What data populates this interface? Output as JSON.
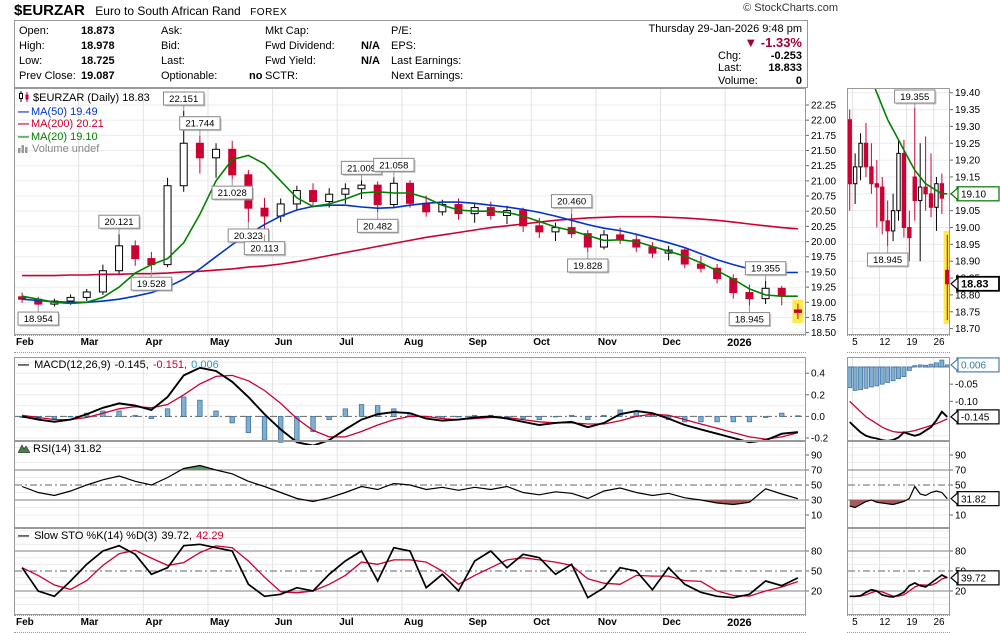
{
  "header": {
    "symbol": "$EURZAR",
    "description": "Euro to South African Rand",
    "exchange": "FOREX",
    "copyright": "© StockCharts.com"
  },
  "quote": {
    "col1": [
      {
        "label": "Open:",
        "value": "18.873"
      },
      {
        "label": "High:",
        "value": "18.978"
      },
      {
        "label": "Low:",
        "value": "18.725"
      },
      {
        "label": "Prev Close:",
        "value": "19.087"
      }
    ],
    "col2": [
      {
        "label": "Ask:",
        "value": ""
      },
      {
        "label": "Bid:",
        "value": ""
      },
      {
        "label": "Last:",
        "value": ""
      },
      {
        "label": "Optionable:",
        "value": "no"
      }
    ],
    "col3": [
      {
        "label": "Mkt Cap:",
        "value": ""
      },
      {
        "label": "Fwd Dividend:",
        "value": "N/A"
      },
      {
        "label": "Fwd Yield:",
        "value": "N/A"
      },
      {
        "label": "SCTR:",
        "value": ""
      }
    ],
    "col4": [
      {
        "label": "P/E:",
        "value": ""
      },
      {
        "label": "EPS:",
        "value": ""
      },
      {
        "label": "Last Earnings:",
        "value": ""
      },
      {
        "label": "Next Earnings:",
        "value": ""
      }
    ],
    "date": "Thursday 29-Jan-2026 9:48 pm",
    "pct_change": "-1.33%",
    "chg": {
      "label": "Chg:",
      "value": "-0.253"
    },
    "last": {
      "label": "Last:",
      "value": "18.833"
    },
    "volume": {
      "label": "Volume:",
      "value": "0"
    }
  },
  "legends": {
    "price": {
      "title": "$EURZAR (Daily) 18.83",
      "ma50": "MA(50) 19.49",
      "ma200": "MA(200) 20.21",
      "ma20": "MA(20) 19.10",
      "volume": "Volume undef"
    },
    "macd": {
      "title": "MACD(12,26,9)",
      "macd": "-0.145,",
      "signal": "-0.151,",
      "hist": "0.006"
    },
    "rsi": "RSI(14) 31.82",
    "sto": {
      "title": "Slow STO %K(14) %D(3)",
      "k": "39.72,",
      "d": "42.29"
    }
  },
  "colors": {
    "down": "#cc0033",
    "up_outline": "#000000",
    "ma20": "#008000",
    "ma50": "#0033cc",
    "ma200": "#cc0033",
    "hist_fill": "#7fb0d4",
    "hist_stroke": "#44749c",
    "highlight": "#ffe94d",
    "neg_pct": "#a00034",
    "grid": "#ececec",
    "panel_border": "#999999",
    "rsi_over_fill": "#5d9b62",
    "rsi_under_fill": "#a35c5e"
  },
  "chart_data": {
    "type": "candlestick",
    "main": {
      "sampling": "weekly",
      "y_axis": {
        "max": 22.25,
        "min": 18.5,
        "step": 0.25
      },
      "months": [
        "Feb",
        "Mar",
        "Apr",
        "May",
        "Jun",
        "Jul",
        "Aug",
        "Sep",
        "Oct",
        "Nov",
        "Dec",
        "2026"
      ],
      "month_ticks": [
        0,
        4,
        8,
        12,
        16,
        20,
        24,
        28,
        32,
        36,
        40,
        44
      ],
      "candles": [
        [
          19.09,
          19.16,
          18.99,
          19.05
        ],
        [
          19.05,
          19.09,
          18.954,
          18.97
        ],
        [
          18.97,
          19.06,
          18.93,
          19.02
        ],
        [
          19.02,
          19.13,
          18.96,
          19.08
        ],
        [
          19.08,
          19.22,
          19.02,
          19.17
        ],
        [
          19.17,
          19.62,
          19.12,
          19.52
        ],
        [
          19.52,
          20.121,
          19.46,
          19.93
        ],
        [
          19.93,
          20.02,
          19.6,
          19.72
        ],
        [
          19.72,
          19.83,
          19.528,
          19.62
        ],
        [
          19.62,
          21.05,
          19.58,
          20.92
        ],
        [
          20.92,
          22.151,
          20.82,
          21.62
        ],
        [
          21.62,
          21.744,
          21.12,
          21.38
        ],
        [
          21.38,
          21.62,
          21.05,
          21.52
        ],
        [
          21.52,
          21.66,
          21.028,
          21.1
        ],
        [
          21.1,
          21.18,
          20.323,
          20.55
        ],
        [
          20.55,
          20.72,
          20.113,
          20.42
        ],
        [
          20.42,
          20.71,
          20.32,
          20.62
        ],
        [
          20.62,
          20.92,
          20.52,
          20.84
        ],
        [
          20.84,
          20.96,
          20.56,
          20.66
        ],
        [
          20.66,
          20.88,
          20.56,
          20.78
        ],
        [
          20.78,
          20.96,
          20.62,
          20.87
        ],
        [
          20.87,
          21.009,
          20.7,
          20.93
        ],
        [
          20.93,
          20.99,
          20.482,
          20.61
        ],
        [
          20.61,
          21.058,
          20.55,
          20.96
        ],
        [
          20.96,
          21.01,
          20.56,
          20.63
        ],
        [
          20.63,
          20.76,
          20.41,
          20.49
        ],
        [
          20.49,
          20.69,
          20.43,
          20.61
        ],
        [
          20.61,
          20.71,
          20.36,
          20.46
        ],
        [
          20.46,
          20.63,
          20.31,
          20.56
        ],
        [
          20.56,
          20.66,
          20.36,
          20.43
        ],
        [
          20.43,
          20.59,
          20.29,
          20.51
        ],
        [
          20.51,
          20.56,
          20.16,
          20.26
        ],
        [
          20.26,
          20.39,
          20.06,
          20.16
        ],
        [
          20.16,
          20.31,
          20.01,
          20.23
        ],
        [
          20.23,
          20.46,
          20.06,
          20.13
        ],
        [
          20.13,
          20.19,
          19.828,
          19.91
        ],
        [
          19.91,
          20.19,
          19.87,
          20.11
        ],
        [
          20.11,
          20.23,
          19.96,
          20.03
        ],
        [
          20.03,
          20.11,
          19.83,
          19.91
        ],
        [
          19.91,
          19.99,
          19.73,
          19.81
        ],
        [
          19.81,
          19.93,
          19.69,
          19.86
        ],
        [
          19.86,
          19.89,
          19.56,
          19.63
        ],
        [
          19.63,
          19.76,
          19.49,
          19.56
        ],
        [
          19.56,
          19.63,
          19.31,
          19.39
        ],
        [
          19.39,
          19.46,
          19.06,
          19.16
        ],
        [
          19.16,
          19.29,
          18.945,
          19.06
        ],
        [
          19.06,
          19.355,
          18.97,
          19.23
        ],
        [
          19.23,
          19.27,
          18.95,
          19.1
        ],
        [
          18.873,
          18.978,
          18.725,
          18.833
        ]
      ],
      "ma20": [
        19.1,
        19.05,
        19.0,
        18.98,
        19.0,
        19.08,
        19.25,
        19.48,
        19.62,
        19.72,
        19.98,
        20.45,
        21.0,
        21.35,
        21.42,
        21.28,
        21.0,
        20.72,
        20.58,
        20.62,
        20.7,
        20.8,
        20.82,
        20.8,
        20.8,
        20.72,
        20.6,
        20.52,
        20.5,
        20.5,
        20.48,
        20.42,
        20.33,
        20.24,
        20.18,
        20.1,
        20.02,
        20.03,
        20.0,
        19.92,
        19.84,
        19.76,
        19.65,
        19.52,
        19.38,
        19.22,
        19.12,
        19.1,
        19.1
      ],
      "ma50": [
        19.05,
        19.03,
        19.01,
        19.0,
        19.0,
        19.02,
        19.05,
        19.1,
        19.16,
        19.25,
        19.38,
        19.55,
        19.75,
        19.95,
        20.12,
        20.28,
        20.42,
        20.52,
        20.58,
        20.6,
        20.6,
        20.57,
        20.55,
        20.56,
        20.6,
        20.63,
        20.65,
        20.65,
        20.63,
        20.6,
        20.57,
        20.53,
        20.48,
        20.42,
        20.35,
        20.28,
        20.22,
        20.18,
        20.12,
        20.05,
        19.98,
        19.9,
        19.8,
        19.7,
        19.62,
        19.55,
        19.5,
        19.49,
        19.49
      ],
      "ma200": [
        19.44,
        19.44,
        19.44,
        19.45,
        19.45,
        19.46,
        19.46,
        19.47,
        19.47,
        19.48,
        19.5,
        19.51,
        19.53,
        19.55,
        19.58,
        19.6,
        19.63,
        19.67,
        19.72,
        19.77,
        19.82,
        19.87,
        19.92,
        19.97,
        20.02,
        20.07,
        20.11,
        20.15,
        20.19,
        20.23,
        20.26,
        20.29,
        20.32,
        20.35,
        20.37,
        20.39,
        20.4,
        20.41,
        20.41,
        20.41,
        20.4,
        20.39,
        20.37,
        20.35,
        20.32,
        20.29,
        20.26,
        20.23,
        20.21
      ],
      "annotations": [
        [
          1,
          "18.954",
          "b"
        ],
        [
          6,
          "20.121",
          "a"
        ],
        [
          8,
          "19.528",
          "b"
        ],
        [
          10,
          "22.151",
          "a"
        ],
        [
          11,
          "21.744",
          "a"
        ],
        [
          13,
          "21.028",
          "b"
        ],
        [
          14,
          "20.323",
          "b"
        ],
        [
          15,
          "20.113",
          "b"
        ],
        [
          21,
          "21.009",
          "a"
        ],
        [
          22,
          "20.482",
          "b"
        ],
        [
          23,
          "21.058",
          "a"
        ],
        [
          34,
          "20.460",
          "a"
        ],
        [
          35,
          "19.828",
          "b"
        ],
        [
          45,
          "18.945",
          "b"
        ],
        [
          46,
          "19.355",
          "a"
        ]
      ],
      "highlight_index": 48
    },
    "mini": {
      "y_axis": {
        "max": 19.4,
        "min": 18.7,
        "step": 0.05
      },
      "x_labels": [
        "5",
        "12",
        "19",
        "26"
      ],
      "x_ticks": [
        1,
        6,
        11,
        16
      ],
      "candles": [
        [
          19.32,
          19.35,
          19.05,
          19.13
        ],
        [
          19.13,
          19.22,
          19.07,
          19.18
        ],
        [
          19.18,
          19.28,
          19.14,
          19.25
        ],
        [
          19.25,
          19.31,
          19.15,
          19.18
        ],
        [
          19.18,
          19.25,
          19.1,
          19.13
        ],
        [
          19.13,
          19.2,
          19.0,
          19.12
        ],
        [
          19.12,
          19.15,
          18.98,
          19.02
        ],
        [
          19.02,
          19.08,
          18.945,
          18.99
        ],
        [
          18.99,
          19.1,
          18.96,
          19.05
        ],
        [
          19.05,
          19.26,
          19.02,
          19.22
        ],
        [
          19.22,
          19.26,
          18.97,
          19.0
        ],
        [
          19.0,
          19.05,
          18.9,
          18.97
        ],
        [
          19.15,
          19.355,
          19.02,
          19.08
        ],
        [
          19.08,
          19.25,
          18.9,
          19.12
        ],
        [
          19.12,
          19.27,
          19.05,
          19.1
        ],
        [
          19.1,
          19.22,
          19.03,
          19.06
        ],
        [
          19.06,
          19.15,
          18.99,
          19.13
        ],
        [
          19.13,
          19.16,
          19.04,
          19.087
        ],
        [
          18.873,
          18.978,
          18.725,
          18.833
        ]
      ],
      "ma20": [
        null,
        null,
        null,
        null,
        19.44,
        19.4,
        19.36,
        19.32,
        19.29,
        19.26,
        19.23,
        19.2,
        19.17,
        19.15,
        19.13,
        19.12,
        19.11,
        19.1,
        19.1
      ],
      "annotations": [
        [
          7,
          "18.945",
          "b"
        ],
        [
          12,
          "19.355",
          "a"
        ]
      ],
      "highlight_index": 18,
      "boxes": [
        {
          "v": 19.1,
          "t": "19.10",
          "s": "green"
        },
        {
          "v": 18.833,
          "t": "18.83",
          "s": "blackbold"
        }
      ]
    },
    "macd": {
      "labels": [
        0.4,
        0.2,
        0.0,
        -0.2
      ],
      "macd": [
        0.0,
        -0.03,
        -0.05,
        -0.03,
        0.02,
        0.08,
        0.12,
        0.1,
        0.06,
        0.18,
        0.38,
        0.45,
        0.42,
        0.32,
        0.18,
        0.02,
        -0.12,
        -0.24,
        -0.27,
        -0.22,
        -0.12,
        -0.03,
        0.02,
        0.04,
        0.03,
        -0.02,
        -0.04,
        -0.03,
        -0.01,
        0.0,
        -0.02,
        -0.05,
        -0.08,
        -0.06,
        -0.05,
        -0.1,
        -0.06,
        0.02,
        0.05,
        0.03,
        -0.02,
        -0.08,
        -0.12,
        -0.16,
        -0.2,
        -0.24,
        -0.22,
        -0.16,
        -0.145
      ],
      "signal": [
        0.01,
        -0.01,
        -0.03,
        -0.03,
        -0.01,
        0.03,
        0.07,
        0.09,
        0.08,
        0.11,
        0.2,
        0.3,
        0.37,
        0.38,
        0.33,
        0.24,
        0.12,
        -0.02,
        -0.13,
        -0.19,
        -0.19,
        -0.14,
        -0.08,
        -0.03,
        0.0,
        0.0,
        -0.02,
        -0.03,
        -0.02,
        -0.01,
        -0.01,
        -0.03,
        -0.05,
        -0.06,
        -0.06,
        -0.07,
        -0.07,
        -0.04,
        0.0,
        0.02,
        0.01,
        -0.03,
        -0.07,
        -0.11,
        -0.15,
        -0.19,
        -0.21,
        -0.19,
        -0.151
      ]
    },
    "macd_mini": {
      "labels": [
        -0.05,
        -0.1
      ],
      "macd": [
        -0.16,
        -0.175,
        -0.19,
        -0.2,
        -0.205,
        -0.208,
        -0.213,
        -0.215,
        -0.212,
        -0.205,
        -0.19,
        -0.195,
        -0.2,
        -0.195,
        -0.185,
        -0.175,
        -0.155,
        -0.13,
        -0.145
      ],
      "signal": [
        -0.1,
        -0.115,
        -0.13,
        -0.145,
        -0.155,
        -0.165,
        -0.175,
        -0.182,
        -0.188,
        -0.19,
        -0.19,
        -0.188,
        -0.185,
        -0.18,
        -0.175,
        -0.17,
        -0.165,
        -0.158,
        -0.151
      ],
      "hist": [
        -0.06,
        -0.068,
        -0.066,
        -0.062,
        -0.058,
        -0.055,
        -0.05,
        -0.045,
        -0.04,
        -0.034,
        -0.028,
        -0.01,
        0.004,
        0.006,
        0.005,
        0.008,
        0.012,
        0.02,
        0.006
      ],
      "boxes": [
        {
          "v": 0.006,
          "t": "0.006",
          "s": "blue"
        },
        {
          "v": -0.145,
          "t": "-0.145",
          "s": "black"
        }
      ]
    },
    "rsi": {
      "labels": [
        90,
        70,
        50,
        30,
        10
      ],
      "overbought": 70,
      "oversold": 30,
      "values": [
        48,
        40,
        36,
        42,
        50,
        57,
        62,
        55,
        50,
        60,
        72,
        76,
        70,
        65,
        55,
        48,
        40,
        32,
        28,
        33,
        40,
        48,
        44,
        52,
        50,
        44,
        47,
        43,
        47,
        44,
        48,
        40,
        37,
        41,
        39,
        32,
        42,
        46,
        40,
        36,
        39,
        33,
        30,
        26,
        24,
        27,
        45,
        38,
        31.82
      ]
    },
    "rsi_mini": {
      "labels": [
        90,
        70,
        50,
        10
      ],
      "values": [
        22,
        20,
        24,
        28,
        30,
        27,
        26,
        25,
        24,
        26,
        28,
        32,
        48,
        38,
        36,
        40,
        42,
        40,
        31.82
      ],
      "boxes": [
        {
          "v": 31.82,
          "t": "31.82",
          "s": "black"
        }
      ]
    },
    "sto": {
      "labels": [
        80,
        50,
        20
      ],
      "k": [
        55,
        20,
        12,
        35,
        60,
        80,
        88,
        75,
        45,
        55,
        88,
        90,
        85,
        80,
        30,
        12,
        15,
        25,
        20,
        45,
        65,
        80,
        35,
        85,
        80,
        25,
        45,
        20,
        65,
        80,
        55,
        75,
        70,
        45,
        60,
        10,
        25,
        55,
        50,
        22,
        55,
        30,
        18,
        12,
        10,
        15,
        35,
        28,
        39.72
      ]
    },
    "sto_mini": {
      "labels": [
        80,
        50,
        20
      ],
      "k": [
        12,
        12,
        13,
        18,
        22,
        20,
        14,
        12,
        11,
        14,
        18,
        28,
        32,
        28,
        26,
        32,
        38,
        44,
        39.72
      ],
      "boxes": [
        {
          "v": 39.72,
          "t": "39.72",
          "s": "black"
        }
      ]
    }
  }
}
